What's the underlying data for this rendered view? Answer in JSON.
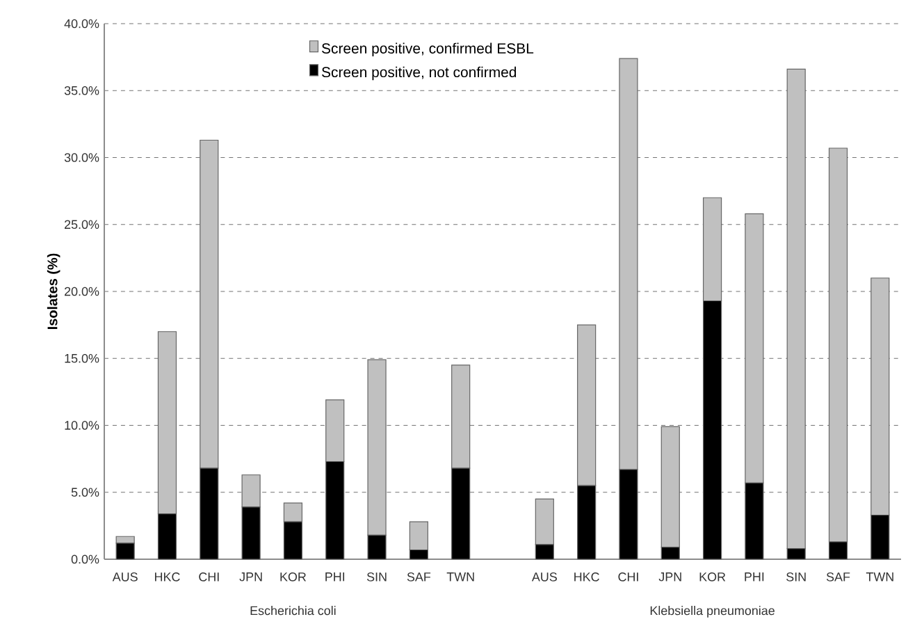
{
  "chart_data": {
    "type": "bar",
    "stacked": true,
    "ylabel": "Isolates (%)",
    "categories": [
      "AUS",
      "HKC",
      "CHI",
      "JPN",
      "KOR",
      "PHI",
      "SIN",
      "SAF",
      "TWN",
      null,
      "AUS",
      "HKC",
      "CHI",
      "JPN",
      "KOR",
      "PHI",
      "SIN",
      "SAF",
      "TWN"
    ],
    "series": [
      {
        "name": "Screen positive, not confirmed",
        "color": "#000000",
        "values": [
          1.2,
          3.4,
          6.8,
          3.9,
          2.8,
          7.3,
          1.8,
          0.7,
          6.8,
          null,
          1.1,
          5.5,
          6.7,
          0.9,
          19.3,
          5.7,
          0.8,
          1.3,
          3.3
        ]
      },
      {
        "name": "Screen positive, confirmed ESBL",
        "color": "#c0c0c0",
        "values": [
          0.5,
          13.6,
          24.5,
          2.4,
          1.4,
          4.6,
          13.1,
          2.1,
          7.7,
          null,
          3.4,
          12.0,
          30.7,
          9.0,
          7.7,
          20.1,
          35.8,
          29.4,
          17.7
        ]
      }
    ],
    "ylim": [
      0,
      40
    ],
    "yticks": [
      {
        "value": 0,
        "label": "0.0%"
      },
      {
        "value": 5,
        "label": "5.0%"
      },
      {
        "value": 10,
        "label": "10.0%"
      },
      {
        "value": 15,
        "label": "15.0%"
      },
      {
        "value": 20,
        "label": "20.0%"
      },
      {
        "value": 25,
        "label": "25.0%"
      },
      {
        "value": 30,
        "label": "30.0%"
      },
      {
        "value": 35,
        "label": "35.0%"
      },
      {
        "value": 40,
        "label": "40.0%"
      }
    ],
    "annotations": [
      "Escherichia coli",
      "Klebsiella pneumoniae"
    ],
    "grid": "y",
    "legend": "top"
  }
}
